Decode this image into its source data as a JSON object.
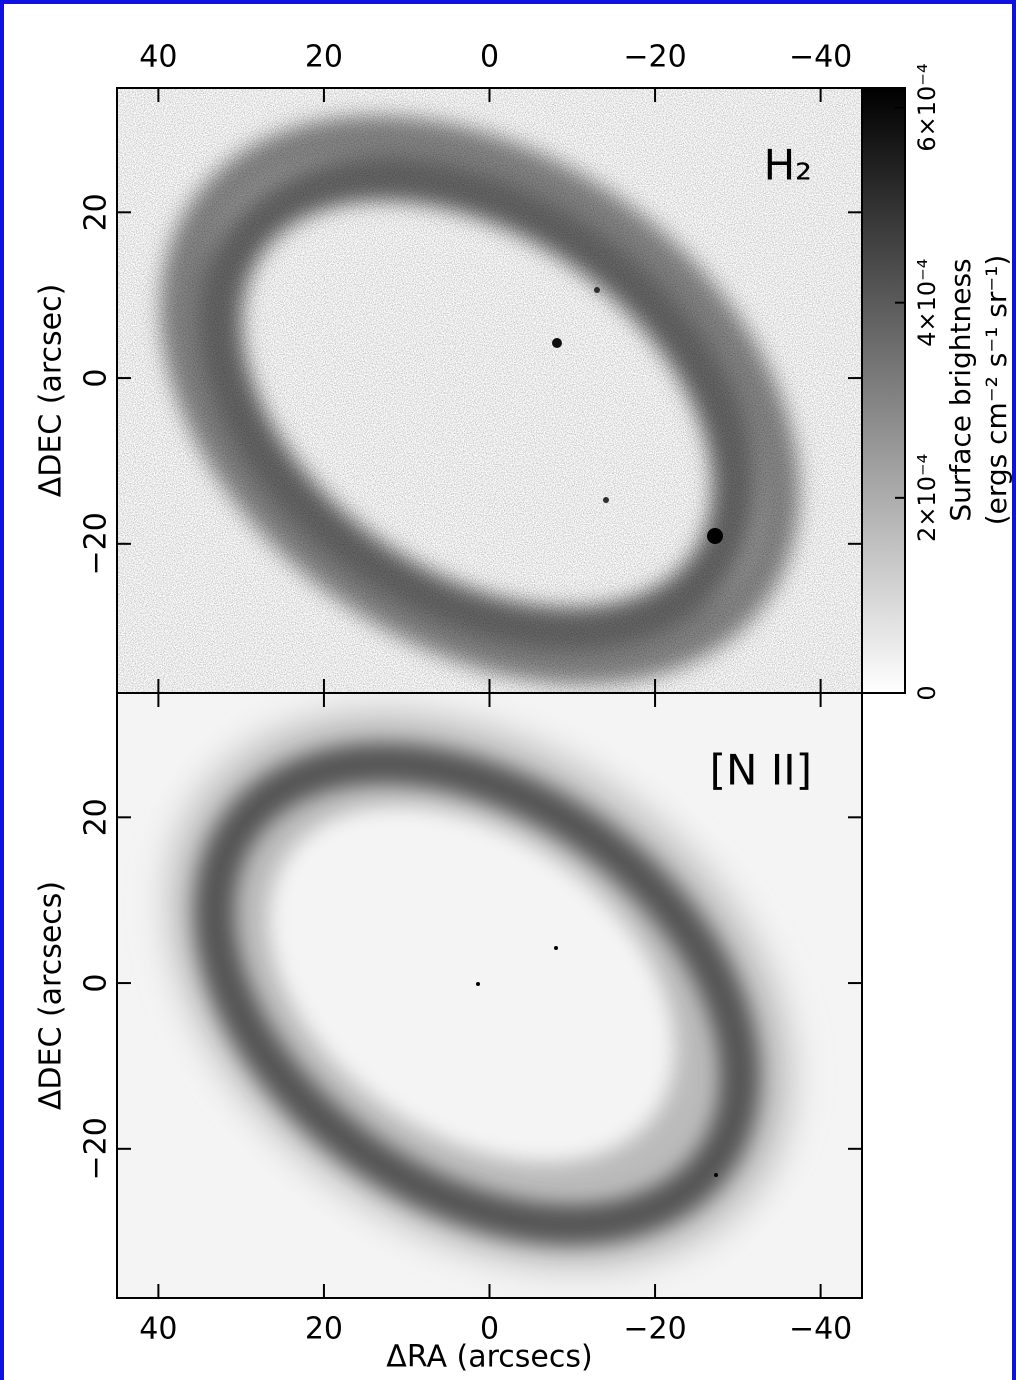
{
  "chart_data": [
    {
      "type": "image",
      "annotation": "H₂",
      "ylabel": "ΔDEC (arcsec)",
      "xlim": [
        45,
        -45
      ],
      "ylim": [
        -38,
        35
      ],
      "xticks": [
        40,
        20,
        0,
        {
          "value": -20,
          "label": "−20"
        },
        {
          "value": -40,
          "label": "−40"
        }
      ],
      "yticks": [
        20,
        0,
        {
          "value": -20,
          "label": "−20"
        }
      ],
      "colorbar": {
        "label": [
          "Surface brightness",
          "(ergs cm⁻² s⁻¹ sr⁻¹)"
        ],
        "lim": [
          0,
          0.00062
        ],
        "ticks": [
          0,
          {
            "value": 0.0002,
            "label": "2×10⁻⁴"
          },
          {
            "value": 0.0004,
            "label": "4×10⁻⁴"
          },
          {
            "value": 0.0006,
            "label": "6×10⁻⁴"
          }
        ]
      }
    },
    {
      "type": "image",
      "annotation": "[N II]",
      "xlabel": "ΔRA (arcsecs)",
      "ylabel": "ΔDEC (arcsecs)",
      "xlim": [
        45,
        -45
      ],
      "ylim": [
        -38,
        35
      ],
      "xticks": [
        40,
        20,
        0,
        {
          "value": -20,
          "label": "−20"
        },
        {
          "value": -40,
          "label": "−40"
        }
      ],
      "yticks": [
        20,
        0,
        {
          "value": -20,
          "label": "−20"
        }
      ]
    }
  ]
}
